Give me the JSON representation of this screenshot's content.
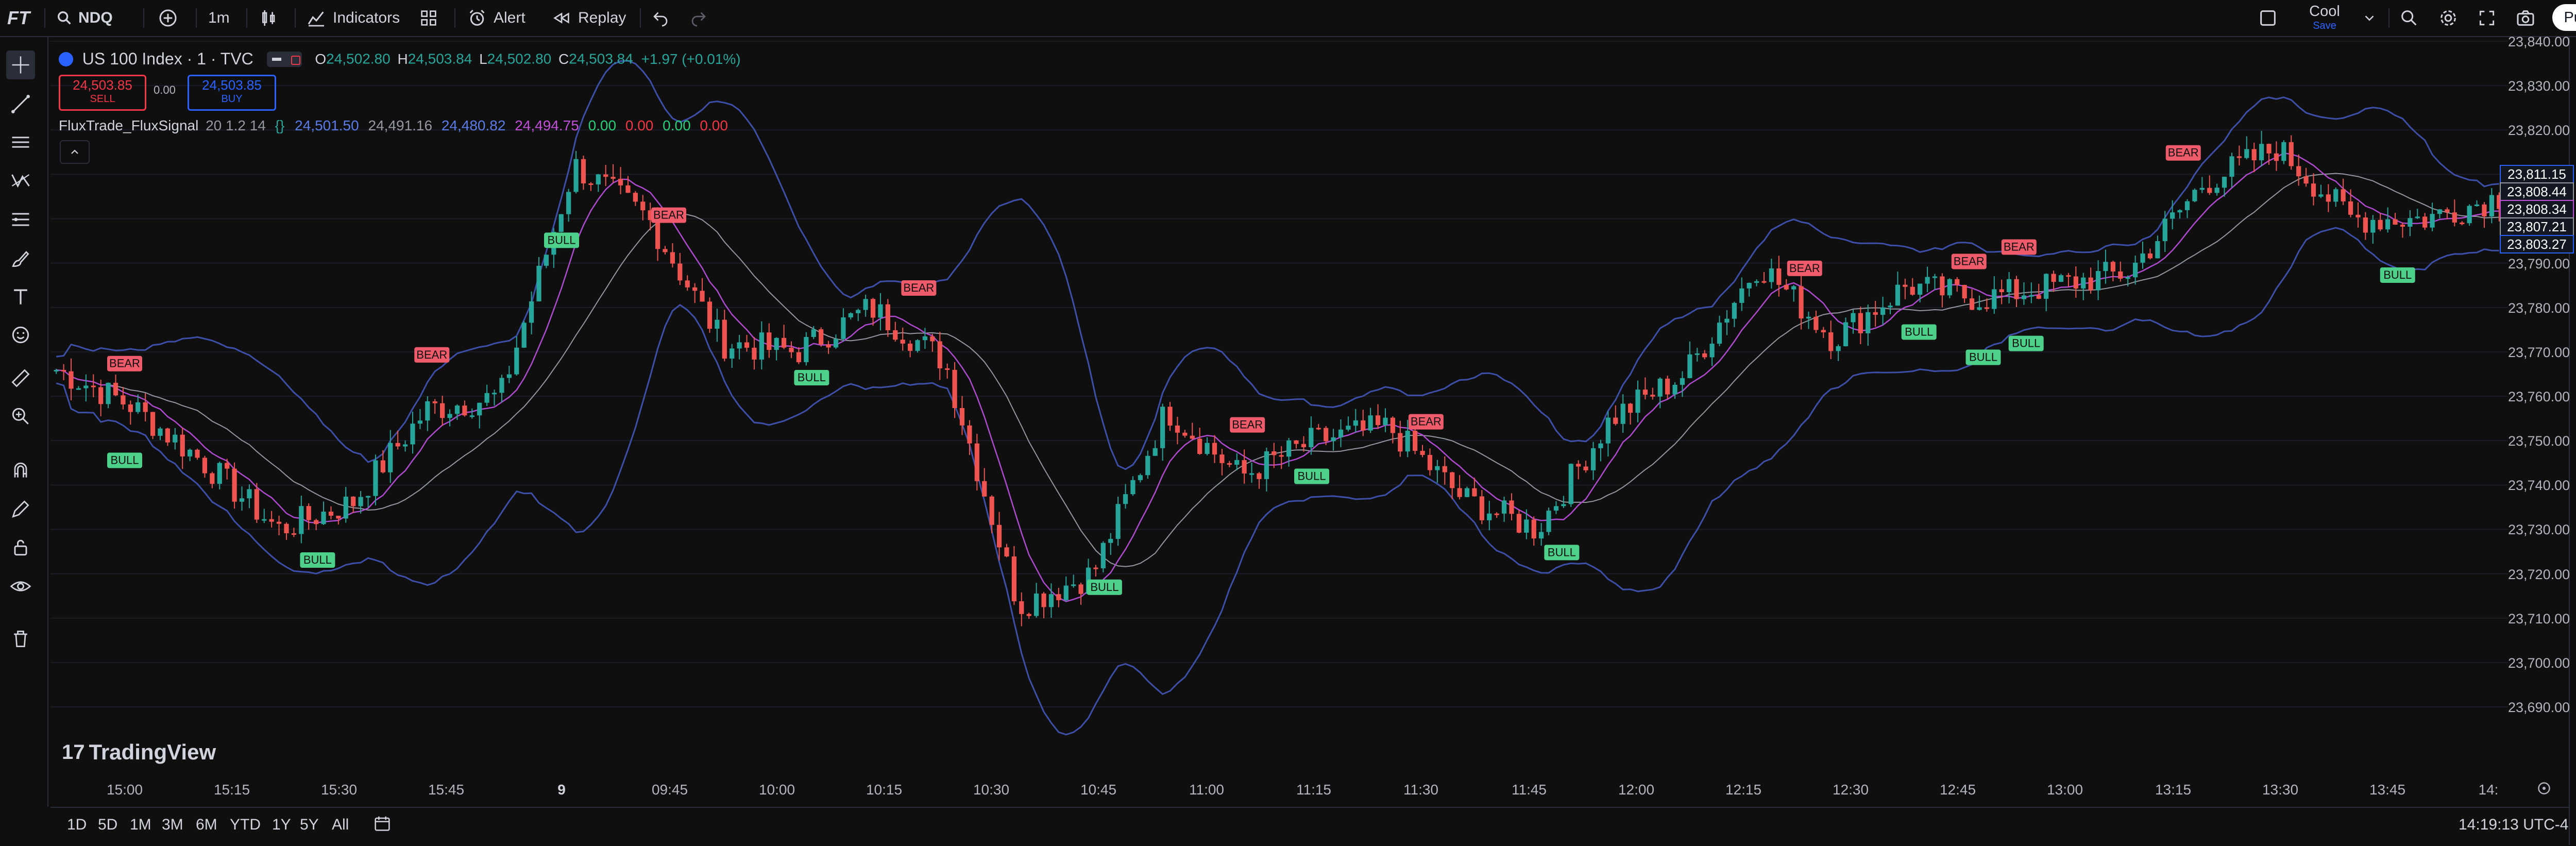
{
  "toolbar": {
    "logo": "FT",
    "symbol": "NDQ",
    "interval": "1m",
    "indicators": "Indicators",
    "alert": "Alert",
    "replay": "Replay",
    "layout_name": "Cool",
    "layout_status": "Save",
    "publish": "Publish"
  },
  "legend": {
    "instrument": "US 100 Index · 1 · TVC",
    "open_label": "O",
    "open": "24,502.80",
    "high_label": "H",
    "high": "24,503.84",
    "low_label": "L",
    "low": "24,502.80",
    "close_label": "C",
    "close": "24,503.84",
    "change": "+1.97 (+0.01%)",
    "sell_price": "24,503.85",
    "sell_label": "SELL",
    "spread": "0.00",
    "buy_price": "24,503.85",
    "buy_label": "BUY",
    "indicator_name": "FluxTrade_FluxSignal",
    "indicator_params": "20 1.2 14",
    "ind_v1": "24,501.50",
    "ind_v2": "24,491.16",
    "ind_v3": "24,480.82",
    "ind_v4": "24,494.75",
    "ind_v5": "0.00",
    "ind_v6": "0.00",
    "ind_v7": "0.00",
    "ind_v8": "0.00"
  },
  "price_axis": [
    "23,840.00",
    "23,830.00",
    "23,820.00",
    "23,810.00",
    "23,800.00",
    "23,790.00",
    "23,780.00",
    "23,770.00",
    "23,760.00",
    "23,750.00",
    "23,740.00",
    "23,730.00",
    "23,720.00",
    "23,710.00",
    "23,700.00",
    "23,690.00"
  ],
  "price_tags": [
    "23,811.15",
    "23,808.44",
    "23,808.34",
    "23,807.21",
    "23,803.27"
  ],
  "time_axis": [
    "15:00",
    "15:15",
    "15:30",
    "15:45",
    "9",
    "09:45",
    "10:00",
    "10:15",
    "10:30",
    "10:45",
    "11:00",
    "11:15",
    "11:30",
    "11:45",
    "12:00",
    "12:15",
    "12:30",
    "12:45",
    "13:00",
    "13:15",
    "13:30",
    "13:45",
    "14:"
  ],
  "watermark": "TradingView",
  "ranges": [
    "1D",
    "5D",
    "1M",
    "3M",
    "6M",
    "YTD",
    "1Y",
    "5Y",
    "All"
  ],
  "clock": "14:19:13 UTC-4",
  "signal_labels": {
    "bull": "BULL",
    "bear": "BEAR"
  },
  "colors": {
    "up": "#26a69a",
    "down": "#ef5350",
    "bb": "#3d4fa8",
    "fast": "#b04ad0",
    "slow": "#9598a1",
    "bull_bg": "#4cd08a",
    "bear_bg": "#f05b6b"
  },
  "chart_data": {
    "type": "line",
    "ylim": [
      23690,
      23840
    ],
    "x": [
      "14:55",
      "15:05",
      "15:15",
      "15:25",
      "15:35",
      "15:45",
      "9",
      "09:40",
      "09:50",
      "10:00",
      "10:10",
      "10:20",
      "10:30",
      "10:40",
      "10:50",
      "11:00",
      "11:10",
      "11:20",
      "11:30",
      "11:40",
      "11:50",
      "12:00",
      "12:10",
      "12:20",
      "12:30",
      "12:40",
      "12:50",
      "13:00",
      "13:10",
      "13:20",
      "13:30",
      "13:40",
      "13:50",
      "14:00"
    ],
    "series": [
      {
        "values": [
          23766,
          23758,
          23745,
          23730,
          23736,
          23757,
          23760,
          23812,
          23800,
          23772,
          23770,
          23780,
          23768,
          23713,
          23720,
          23757,
          23742,
          23750,
          23753,
          23737,
          23730,
          23755,
          23765,
          23790,
          23773,
          23785,
          23782,
          23785,
          23788,
          23808,
          23816,
          23800,
          23800,
          23805
        ]
      }
    ],
    "signals": [
      {
        "x": "15:00",
        "type": "BULL"
      },
      {
        "x": "15:00",
        "type": "BEAR"
      },
      {
        "x": "15:27",
        "type": "BULL"
      },
      {
        "x": "15:43",
        "type": "BEAR"
      },
      {
        "x": "9",
        "type": "BULL"
      },
      {
        "x": "09:45",
        "type": "BEAR"
      },
      {
        "x": "10:05",
        "type": "BULL"
      },
      {
        "x": "10:20",
        "type": "BEAR"
      },
      {
        "x": "10:46",
        "type": "BULL"
      },
      {
        "x": "11:06",
        "type": "BEAR"
      },
      {
        "x": "11:15",
        "type": "BULL"
      },
      {
        "x": "11:31",
        "type": "BEAR"
      },
      {
        "x": "11:50",
        "type": "BULL"
      },
      {
        "x": "12:24",
        "type": "BEAR"
      },
      {
        "x": "12:40",
        "type": "BULL"
      },
      {
        "x": "12:47",
        "type": "BEAR"
      },
      {
        "x": "12:49",
        "type": "BULL"
      },
      {
        "x": "12:55",
        "type": "BULL"
      },
      {
        "x": "12:54",
        "type": "BEAR"
      },
      {
        "x": "13:17",
        "type": "BEAR"
      },
      {
        "x": "13:47",
        "type": "BULL"
      }
    ]
  }
}
